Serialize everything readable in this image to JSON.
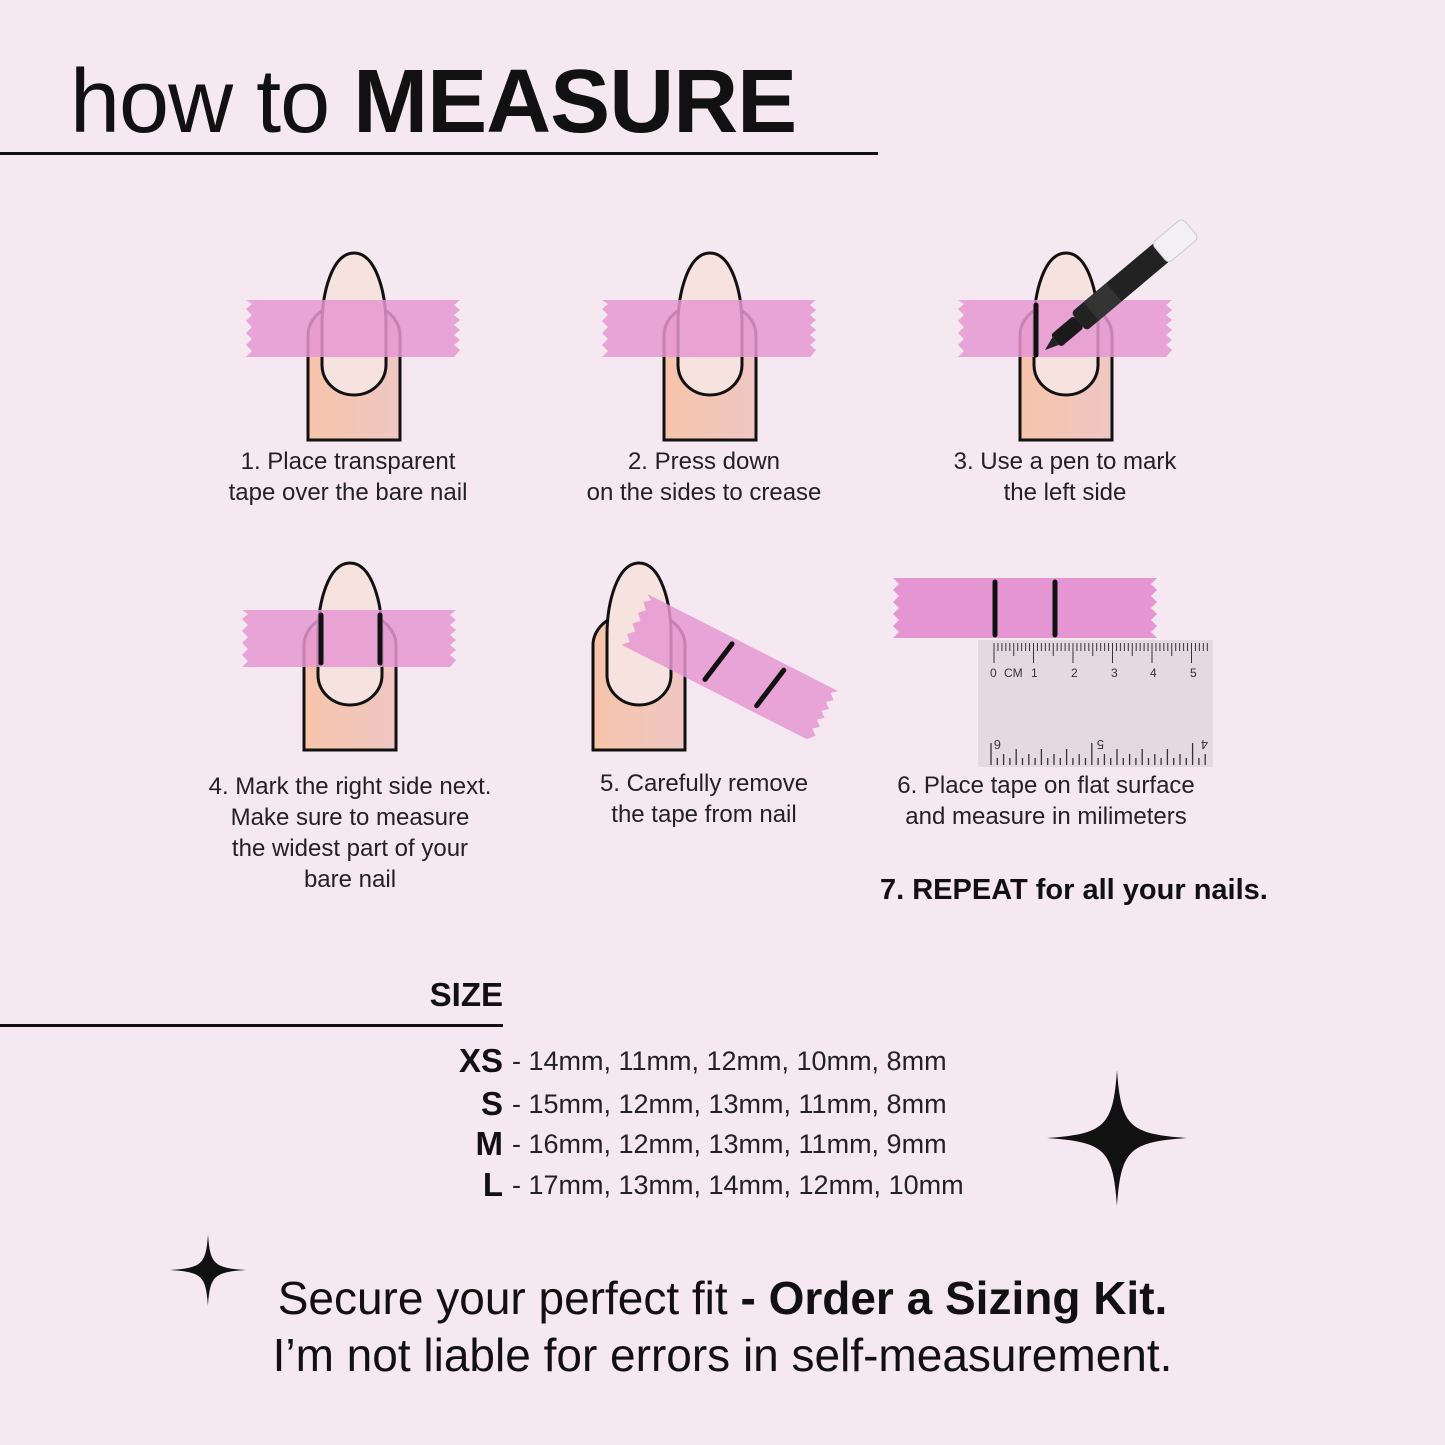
{
  "title": {
    "light": "how to ",
    "bold": "MEASURE"
  },
  "steps": [
    {
      "lines": [
        "1. Place transparent",
        "tape over the bare nail"
      ]
    },
    {
      "lines": [
        "2. Press down",
        "on the sides to crease"
      ]
    },
    {
      "lines": [
        "3. Use a pen to mark",
        "the left side"
      ]
    },
    {
      "lines": [
        "4. Mark the right side next.",
        "Make sure to measure",
        "the widest part of your",
        "bare nail"
      ]
    },
    {
      "lines": [
        "5. Carefully remove",
        "the tape from nail"
      ]
    },
    {
      "lines": [
        "6. Place tape on flat surface",
        "and measure in milimeters"
      ]
    }
  ],
  "repeat": "7. REPEAT for all your nails.",
  "ruler": {
    "top_labels": [
      "0",
      "CM",
      "1",
      "2",
      "3",
      "4",
      "5"
    ],
    "bottom_labels": [
      "6",
      "5",
      "4"
    ]
  },
  "size_heading": "SIZE",
  "sizes": [
    {
      "label": "XS",
      "values": "- 14mm, 11mm, 12mm, 10mm, 8mm"
    },
    {
      "label": "S",
      "values": "- 15mm, 12mm, 13mm, 11mm, 8mm"
    },
    {
      "label": "M",
      "values": "- 16mm, 12mm, 13mm, 11mm, 9mm"
    },
    {
      "label": "L",
      "values": "- 17mm, 13mm, 14mm, 12mm, 10mm"
    }
  ],
  "footer": {
    "line1_regular": "Secure your perfect fit ",
    "line1_bold": "- Order a Sizing Kit.",
    "line2": "I’m not liable for errors in self-measurement."
  },
  "colors": {
    "background": "#f5e8f0",
    "tape": "#e9a3d6",
    "skin": "#f4c6b0",
    "nail": "#f6e2de",
    "ink": "#111111"
  }
}
